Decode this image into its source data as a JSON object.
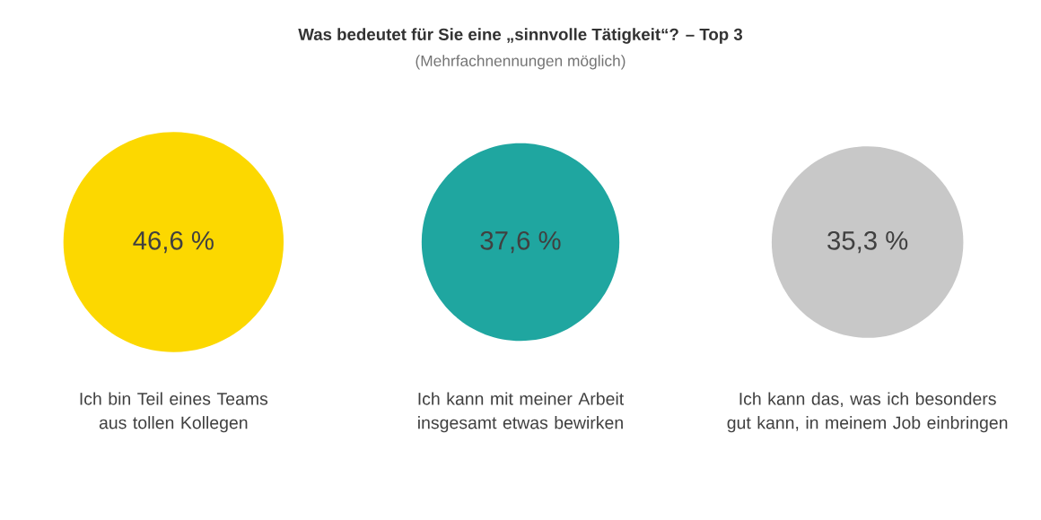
{
  "chart_data": {
    "type": "other",
    "title": "Was bedeutet für Sie eine „sinnvolle Tätigkeit“? – Top 3",
    "subtitle": "(Mehrfachnennungen möglich)",
    "categories": [
      "Ich bin Teil eines Teams aus tollen Kollegen",
      "Ich kann mit meiner Arbeit insgesamt etwas bewirken",
      "Ich kann das, was ich besonders gut kann, in meinem Job einbringen"
    ],
    "values": [
      46.6,
      37.6,
      35.3
    ],
    "value_labels": [
      "46,6 %",
      "37,6 %",
      "35,3 %"
    ],
    "colors": [
      "#fcd800",
      "#1fa6a0",
      "#c8c8c8"
    ]
  }
}
